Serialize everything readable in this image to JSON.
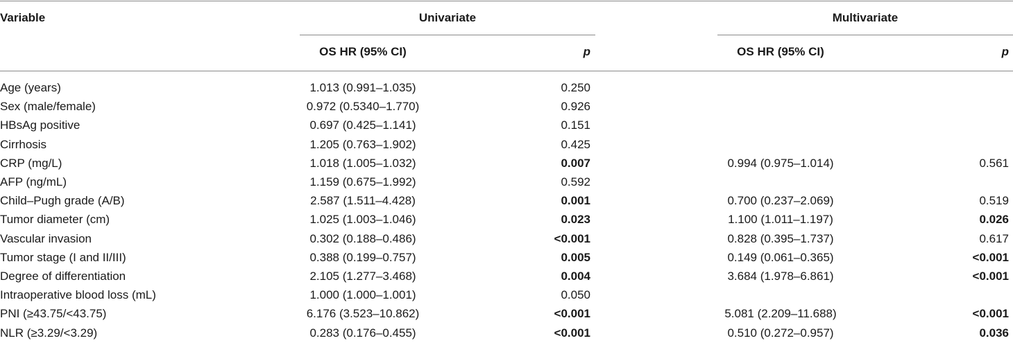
{
  "header": {
    "variable": "Variable",
    "univariate": "Univariate",
    "multivariate": "Multivariate",
    "uni_hr": "OS HR (95% CI)",
    "uni_p": "p",
    "multi_hr": "OS HR (95% CI)",
    "multi_p": "p"
  },
  "rows": [
    {
      "variable": "Age (years)",
      "uni_hr": "1.013 (0.991–1.035)",
      "uni_p": "0.250",
      "uni_bold": false,
      "multi_hr": "",
      "multi_p": "",
      "multi_bold": false
    },
    {
      "variable": "Sex (male/female)",
      "uni_hr": "0.972 (0.5340–1.770)",
      "uni_p": "0.926",
      "uni_bold": false,
      "multi_hr": "",
      "multi_p": "",
      "multi_bold": false
    },
    {
      "variable": "HBsAg positive",
      "uni_hr": "0.697 (0.425–1.141)",
      "uni_p": "0.151",
      "uni_bold": false,
      "multi_hr": "",
      "multi_p": "",
      "multi_bold": false
    },
    {
      "variable": "Cirrhosis",
      "uni_hr": "1.205 (0.763–1.902)",
      "uni_p": "0.425",
      "uni_bold": false,
      "multi_hr": "",
      "multi_p": "",
      "multi_bold": false
    },
    {
      "variable": "CRP (mg/L)",
      "uni_hr": "1.018 (1.005–1.032)",
      "uni_p": "0.007",
      "uni_bold": true,
      "multi_hr": "0.994 (0.975–1.014)",
      "multi_p": "0.561",
      "multi_bold": false
    },
    {
      "variable": "AFP (ng/mL)",
      "uni_hr": "1.159 (0.675–1.992)",
      "uni_p": "0.592",
      "uni_bold": false,
      "multi_hr": "",
      "multi_p": "",
      "multi_bold": false
    },
    {
      "variable": "Child–Pugh grade (A/B)",
      "uni_hr": "2.587 (1.511–4.428)",
      "uni_p": "0.001",
      "uni_bold": true,
      "multi_hr": "0.700 (0.237–2.069)",
      "multi_p": "0.519",
      "multi_bold": false
    },
    {
      "variable": "Tumor diameter (cm)",
      "uni_hr": "1.025 (1.003–1.046)",
      "uni_p": "0.023",
      "uni_bold": true,
      "multi_hr": "1.100 (1.011–1.197)",
      "multi_p": "0.026",
      "multi_bold": true
    },
    {
      "variable": "Vascular invasion",
      "uni_hr": "0.302 (0.188–0.486)",
      "uni_p": "<0.001",
      "uni_bold": true,
      "multi_hr": "0.828 (0.395–1.737)",
      "multi_p": "0.617",
      "multi_bold": false
    },
    {
      "variable": "Tumor stage (I and II/III)",
      "uni_hr": "0.388 (0.199–0.757)",
      "uni_p": "0.005",
      "uni_bold": true,
      "multi_hr": "0.149 (0.061–0.365)",
      "multi_p": "<0.001",
      "multi_bold": true
    },
    {
      "variable": "Degree of differentiation",
      "uni_hr": "2.105 (1.277–3.468)",
      "uni_p": "0.004",
      "uni_bold": true,
      "multi_hr": "3.684 (1.978–6.861)",
      "multi_p": "<0.001",
      "multi_bold": true
    },
    {
      "variable": "Intraoperative blood loss (mL)",
      "uni_hr": "1.000 (1.000–1.001)",
      "uni_p": "0.050",
      "uni_bold": false,
      "multi_hr": "",
      "multi_p": "",
      "multi_bold": false
    },
    {
      "variable": "PNI (≥43.75/<43.75)",
      "uni_hr": "6.176 (3.523–10.862)",
      "uni_p": "<0.001",
      "uni_bold": true,
      "multi_hr": "5.081 (2.209–11.688)",
      "multi_p": "<0.001",
      "multi_bold": true
    },
    {
      "variable": "NLR (≥3.29/<3.29)",
      "uni_hr": "0.283 (0.176–0.455)",
      "uni_p": "<0.001",
      "uni_bold": true,
      "multi_hr": "0.510 (0.272–0.957)",
      "multi_p": "0.036",
      "multi_bold": true
    }
  ]
}
